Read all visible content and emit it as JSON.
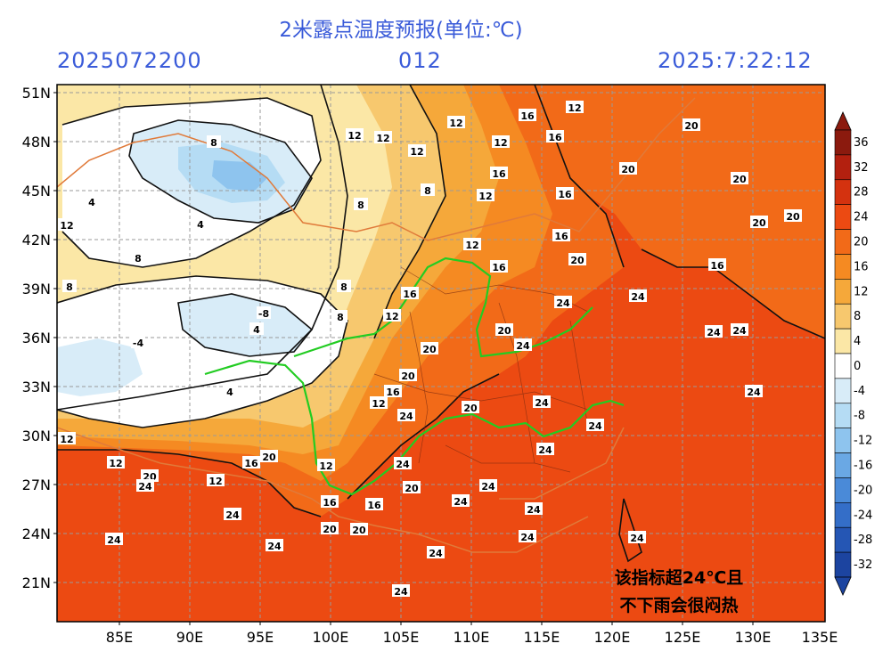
{
  "header": {
    "title": "2米露点温度预报(单位:℃)",
    "init_time": "2025072200",
    "lead_time": "012",
    "valid_time": "2025:7:22:12"
  },
  "axes": {
    "lat_labels": [
      "51N",
      "48N",
      "45N",
      "42N",
      "39N",
      "36N",
      "33N",
      "30N",
      "27N",
      "24N",
      "21N"
    ],
    "lon_labels": [
      "85E",
      "90E",
      "95E",
      "100E",
      "105E",
      "110E",
      "115E",
      "120E",
      "125E",
      "130E",
      "135E"
    ]
  },
  "colorbar": {
    "labels": [
      "36",
      "32",
      "28",
      "24",
      "20",
      "16",
      "12",
      "8",
      "4",
      "0",
      "-4",
      "-8",
      "-12",
      "-16",
      "-20",
      "-24",
      "-28",
      "-32"
    ],
    "colors": [
      "#8b1a0e",
      "#b3200f",
      "#d4320f",
      "#ec4a12",
      "#f26a18",
      "#f58a22",
      "#f5a83a",
      "#f7c86e",
      "#fbe7a6",
      "#ffffff",
      "#d8ecf8",
      "#b5dcf4",
      "#8ec4ee",
      "#6aa8e4",
      "#4a8ad8",
      "#346ec8",
      "#2556b4",
      "#1c44a0"
    ]
  },
  "annotation": {
    "line1": "该指标超24℃且",
    "line2": "不下雨会很闷热"
  },
  "contour_labels": [
    "4",
    "8",
    "12",
    "16",
    "20",
    "24",
    "-4",
    "-8"
  ],
  "map_features": {
    "highlight_river_color": "#22cc22",
    "border_color": "#e07a3a"
  }
}
